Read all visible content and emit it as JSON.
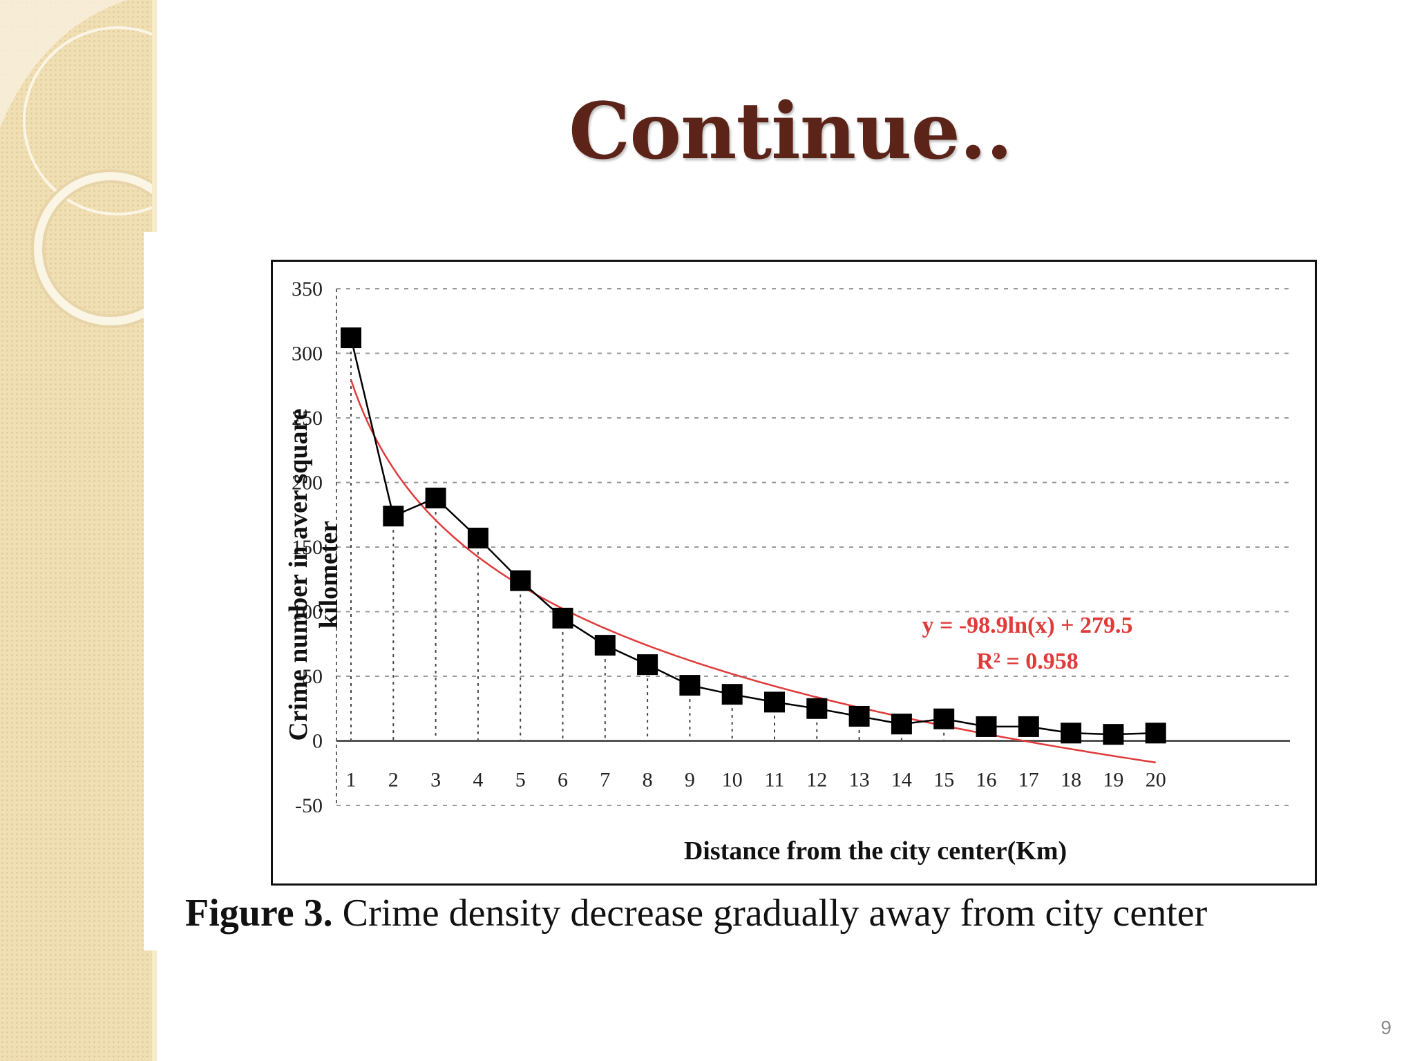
{
  "slide": {
    "title": "Continue..",
    "page_number": "9"
  },
  "figure": {
    "caption_label": "Figure 3.",
    "caption_text": "Crime density decrease gradually away from city center"
  },
  "colors": {
    "title": "#5c2418",
    "trendline": "#e03a3a",
    "data_series": "#000000",
    "sidebar": "#f1dfb4"
  },
  "chart_data": {
    "type": "line",
    "title": "",
    "xlabel": "Distance from the city center(Km)",
    "ylabel": "Crime number in aver square kilometer",
    "categories": [
      "1",
      "2",
      "3",
      "4",
      "5",
      "6",
      "7",
      "8",
      "9",
      "10",
      "11",
      "12",
      "13",
      "14",
      "15",
      "16",
      "17",
      "18",
      "19",
      "20"
    ],
    "series": [
      {
        "values": [
          312,
          174,
          188,
          157,
          124,
          95,
          74,
          59,
          43,
          36,
          30,
          25,
          19,
          13,
          17,
          11,
          11,
          6,
          5,
          6
        ],
        "marker": "square",
        "color": "#000000"
      }
    ],
    "trendline": {
      "type": "logarithmic",
      "equation": "y = -98.9ln(x) + 279.5",
      "r_squared": "R² = 0.958",
      "a": -98.9,
      "b": 279.5,
      "color": "#e03a3a"
    },
    "ylim": [
      -50,
      350
    ],
    "yticks": [
      "350",
      "300",
      "250",
      "200",
      "150",
      "100",
      "50",
      "0",
      "-50"
    ],
    "grid": true,
    "legend": "none"
  }
}
